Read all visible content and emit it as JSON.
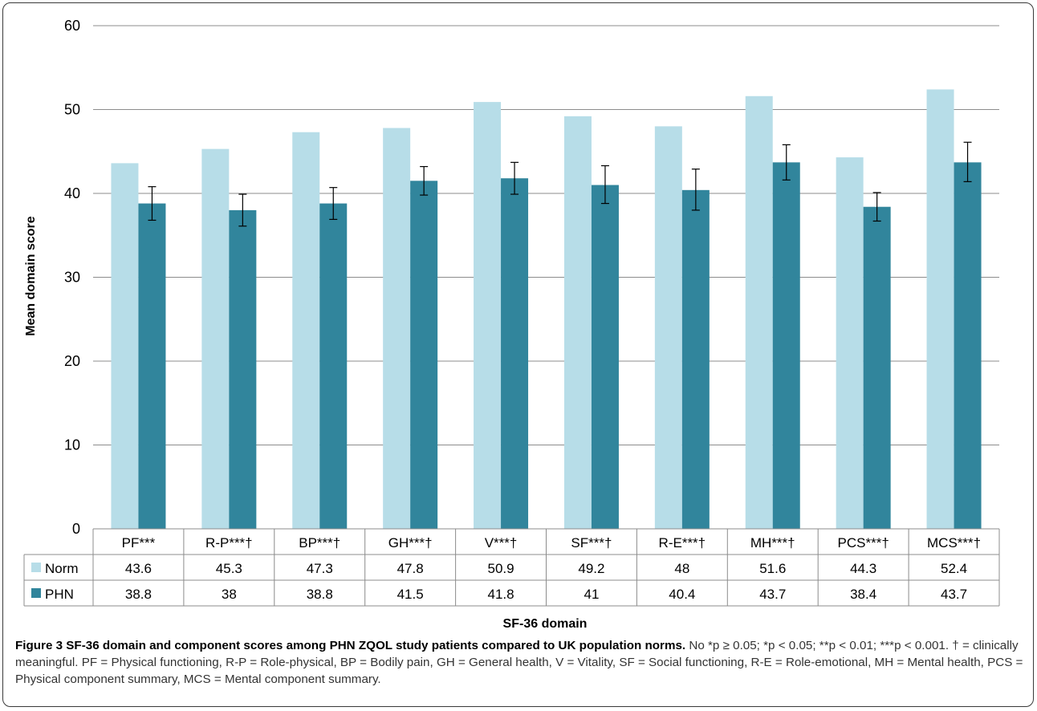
{
  "chart_data": {
    "type": "bar",
    "xlabel": "SF-36 domain",
    "ylabel": "Mean domain score",
    "ylim": [
      0,
      60
    ],
    "yticks": [
      0,
      10,
      20,
      30,
      40,
      50,
      60
    ],
    "grid": true,
    "legend": "data-table",
    "categories": [
      "PF***",
      "R-P***†",
      "BP***†",
      "GH***†",
      "V***†",
      "SF***†",
      "R-E***†",
      "MH***†",
      "PCS***†",
      "MCS***†"
    ],
    "series": [
      {
        "name": "Norm",
        "color": "#b7dde8",
        "values": [
          43.6,
          45.3,
          47.3,
          47.8,
          50.9,
          49.2,
          48,
          51.6,
          44.3,
          52.4
        ],
        "value_labels": [
          "43.6",
          "45.3",
          "47.3",
          "47.8",
          "50.9",
          "49.2",
          "48",
          "51.6",
          "44.3",
          "52.4"
        ]
      },
      {
        "name": "PHN",
        "color": "#31859c",
        "values": [
          38.8,
          38,
          38.8,
          41.5,
          41.8,
          41,
          40.4,
          43.7,
          38.4,
          43.7
        ],
        "value_labels": [
          "38.8",
          "38",
          "38.8",
          "41.5",
          "41.8",
          "41",
          "40.4",
          "43.7",
          "38.4",
          "43.7"
        ],
        "error_low": [
          36.8,
          36.1,
          36.9,
          39.8,
          39.9,
          38.8,
          38,
          41.6,
          36.7,
          41.4
        ],
        "error_high": [
          40.8,
          39.9,
          40.7,
          43.2,
          43.7,
          43.3,
          42.9,
          45.8,
          40.1,
          46.1
        ]
      }
    ]
  },
  "caption": {
    "title": "Figure 3 SF-36 domain and component scores among PHN ZQOL study patients compared to UK population norms.",
    "text": " No *p ≥ 0.05; *p < 0.05; **p < 0.01; ***p < 0.001. † = clinically meaningful. PF = Physical functioning, R-P = Role-physical, BP = Bodily pain, GH = General health, V = Vitality, SF = Social functioning, R-E = Role-emotional, MH = Mental health, PCS = Physical component summary, MCS = Mental component summary."
  }
}
